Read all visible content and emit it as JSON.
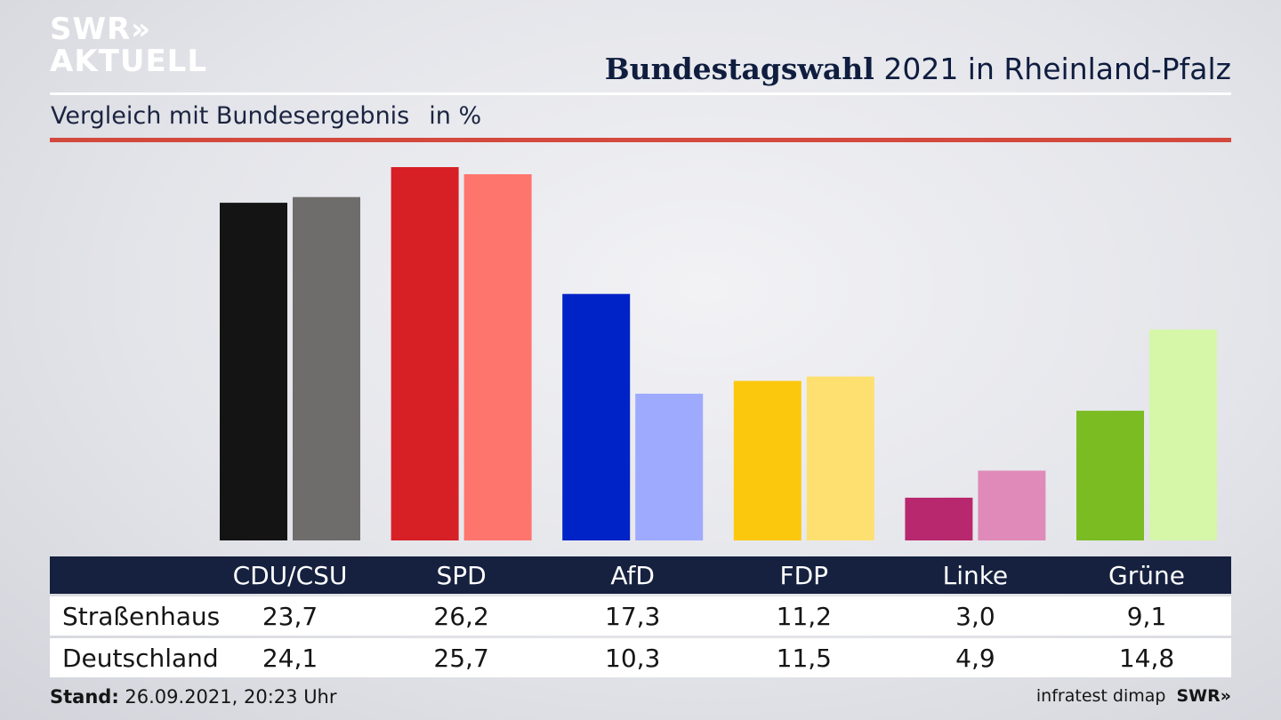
{
  "brand": {
    "line1": "SWR»",
    "line2": "AKTUELL"
  },
  "headline": {
    "bold": "Bundestagswahl",
    "rest": "2021 in Rheinland-Pfalz"
  },
  "subtitle": {
    "text": "Vergleich mit Bundesergebnis",
    "unit": "in %"
  },
  "colors": {
    "regional": [
      "#141414",
      "#d71f26",
      "#0023c7",
      "#fcc80d",
      "#b8286e",
      "#7abc22"
    ],
    "national": [
      "#6f6d6b",
      "#fe756e",
      "#9eaafe",
      "#fde070",
      "#df8ab8",
      "#d6f6a8"
    ],
    "header_bg": "#16213f",
    "red_rule": "#d4493e"
  },
  "chart_data": {
    "type": "bar",
    "categories": [
      "CDU/CSU",
      "SPD",
      "AfD",
      "FDP",
      "Linke",
      "Grüne"
    ],
    "series": [
      {
        "name": "Straßenhaus",
        "values": [
          23.7,
          26.2,
          17.3,
          11.2,
          3.0,
          9.1
        ]
      },
      {
        "name": "Deutschland",
        "values": [
          24.1,
          25.7,
          10.3,
          11.5,
          4.9,
          14.8
        ]
      }
    ],
    "ylim": [
      0,
      26.2
    ],
    "grid": false,
    "legend": "table-below"
  },
  "table": {
    "headers": [
      "CDU/CSU",
      "SPD",
      "AfD",
      "FDP",
      "Linke",
      "Grüne"
    ],
    "rows": [
      {
        "label": "Straßenhaus",
        "values": [
          "23,7",
          "26,2",
          "17,3",
          "11,2",
          "3,0",
          "9,1"
        ]
      },
      {
        "label": "Deutschland",
        "values": [
          "24,1",
          "25,7",
          "10,3",
          "11,5",
          "4,9",
          "14,8"
        ]
      }
    ]
  },
  "footer": {
    "stand_label": "Stand:",
    "stand_value": "26.09.2021, 20:23 Uhr",
    "source": "infratest dimap",
    "brand": "SWR»"
  }
}
